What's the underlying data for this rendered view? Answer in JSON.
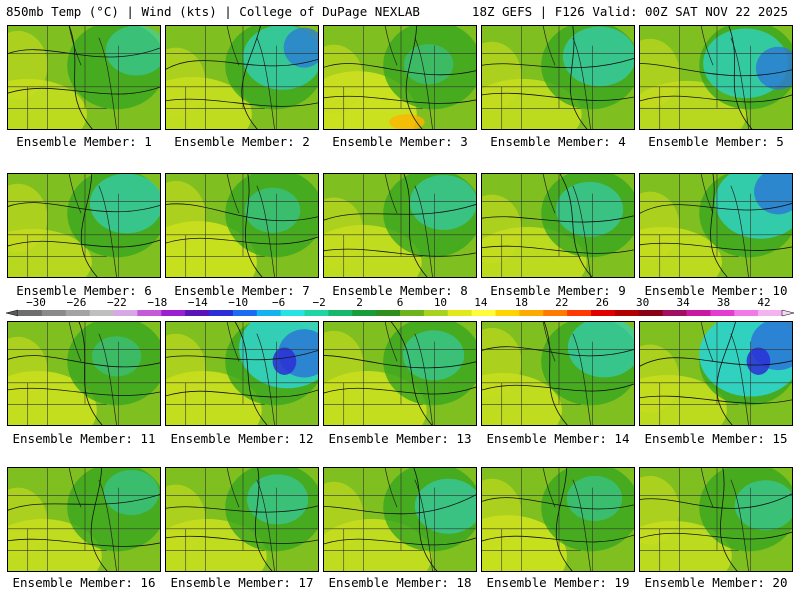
{
  "header": {
    "left": "850mb Temp (°C) | Wind (kts) | College of DuPage NEXLAB",
    "right": "18Z GEFS | F126 Valid: 00Z SAT NOV 22 2025"
  },
  "members": [
    {
      "label": "Ensemble Member: 1",
      "cold": 0.3,
      "warm": 0.3
    },
    {
      "label": "Ensemble Member: 2",
      "cold": 0.6,
      "warm": 0.4
    },
    {
      "label": "Ensemble Member: 3",
      "cold": 0.1,
      "warm": 0.7
    },
    {
      "label": "Ensemble Member: 4",
      "cold": 0.5,
      "warm": 0.3
    },
    {
      "label": "Ensemble Member: 5",
      "cold": 0.7,
      "warm": 0.2
    },
    {
      "label": "Ensemble Member: 6",
      "cold": 0.5,
      "warm": 0.2
    },
    {
      "label": "Ensemble Member: 7",
      "cold": 0.2,
      "warm": 0.6
    },
    {
      "label": "Ensemble Member: 8",
      "cold": 0.4,
      "warm": 0.4
    },
    {
      "label": "Ensemble Member: 9",
      "cold": 0.4,
      "warm": 0.3
    },
    {
      "label": "Ensemble Member: 10",
      "cold": 0.8,
      "warm": 0.3
    },
    {
      "label": "Ensemble Member: 11",
      "cold": 0.1,
      "warm": 0.5
    },
    {
      "label": "Ensemble Member: 12",
      "cold": 0.9,
      "warm": 0.5
    },
    {
      "label": "Ensemble Member: 13",
      "cold": 0.3,
      "warm": 0.5
    },
    {
      "label": "Ensemble Member: 14",
      "cold": 0.5,
      "warm": 0.4
    },
    {
      "label": "Ensemble Member: 15",
      "cold": 1.0,
      "warm": 0.3
    },
    {
      "label": "Ensemble Member: 16",
      "cold": 0.2,
      "warm": 0.4
    },
    {
      "label": "Ensemble Member: 17",
      "cold": 0.3,
      "warm": 0.4
    },
    {
      "label": "Ensemble Member: 18",
      "cold": 0.4,
      "warm": 0.4
    },
    {
      "label": "Ensemble Member: 19",
      "cold": 0.2,
      "warm": 0.6
    },
    {
      "label": "Ensemble Member: 20",
      "cold": 0.3,
      "warm": 0.3
    }
  ],
  "colorbar": {
    "labels": [
      "−30",
      "−26",
      "−22",
      "−18",
      "−14",
      "−10",
      "−6",
      "−2",
      "2",
      "6",
      "10",
      "14",
      "18",
      "22",
      "26",
      "30",
      "34",
      "38",
      "42"
    ],
    "colors": [
      "#6e6e6e",
      "#8a8a8a",
      "#a3a3a3",
      "#bfbfbf",
      "#d7a8e6",
      "#c45ad8",
      "#9b1fd1",
      "#5b14b8",
      "#2b2fd6",
      "#1c6bf0",
      "#16b2f0",
      "#27e3e3",
      "#1fd6a3",
      "#17b86b",
      "#199c3a",
      "#2f8f1c",
      "#6cb31c",
      "#a7d21f",
      "#e2e81a",
      "#fffd3a",
      "#ffd400",
      "#ffaa00",
      "#ff7a00",
      "#ff3a00",
      "#e00000",
      "#b00000",
      "#8a0014",
      "#a01060",
      "#c81aa0",
      "#e43cd0",
      "#f07ae8",
      "#f4b3ef"
    ]
  }
}
